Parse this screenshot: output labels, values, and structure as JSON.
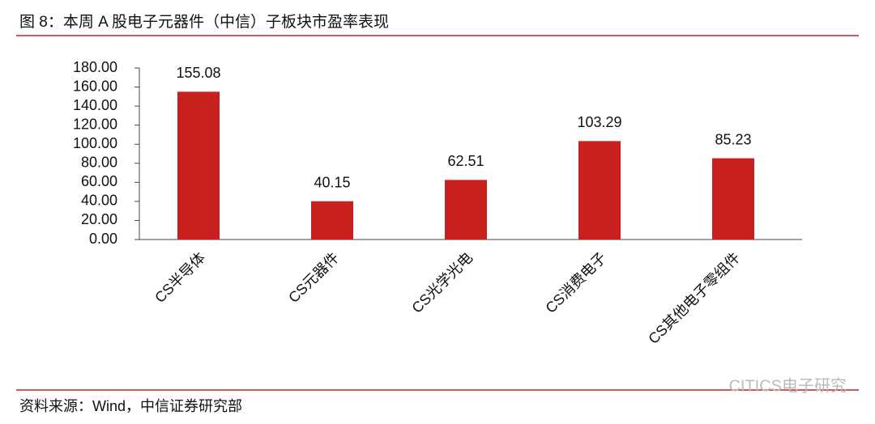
{
  "chart_data": {
    "type": "bar",
    "title": "图 8：本周 A 股电子元器件（中信）子板块市盈率表现",
    "categories": [
      "CS半导体",
      "CS元器件",
      "CS光学光电",
      "CS消费电子",
      "CS其他电子零组件"
    ],
    "values": [
      155.08,
      40.15,
      62.51,
      103.29,
      85.23
    ],
    "color": "#c8201f",
    "ylim": [
      0,
      180
    ],
    "yticks": [
      {
        "value": 0,
        "label": "0.00"
      },
      {
        "value": 20,
        "label": "20.00"
      },
      {
        "value": 40,
        "label": "40.00"
      },
      {
        "value": 60,
        "label": "60.00"
      },
      {
        "value": 80,
        "label": "80.00"
      },
      {
        "value": 100,
        "label": "100.00"
      },
      {
        "value": 120,
        "label": "120.00"
      },
      {
        "value": 140,
        "label": "140.00"
      },
      {
        "value": 160,
        "label": "160.00"
      },
      {
        "value": 180,
        "label": "180.00"
      }
    ],
    "grid": false,
    "source": "资料来源：Wind，中信证券研究部",
    "watermark": "CITICS电子研究"
  }
}
